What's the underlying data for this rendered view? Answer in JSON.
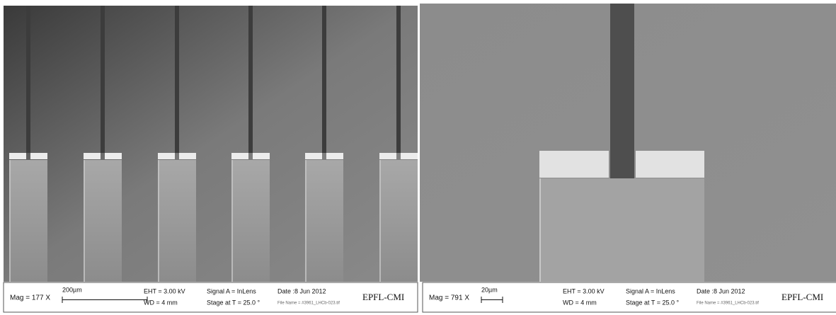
{
  "panels": [
    {
      "mag": "Mag =  177 X",
      "scale": "200µm",
      "eht": "EHT = 3.00 kV",
      "signal": "Signal A = InLens",
      "date": "Date :8 Jun 2012",
      "wd": "WD =   4 mm",
      "stage": "Stage at T =  25.0 °",
      "file": "File Name = #3961_LHCb-023.tif",
      "logo": "EPFL-CMI"
    },
    {
      "mag": "Mag =  791 X",
      "scale": "20µm",
      "eht": "EHT = 3.00 kV",
      "signal": "Signal A = InLens",
      "date": "Date :8 Jun 2012",
      "wd": "WD =   4 mm",
      "stage": "Stage at T =  25.0 °",
      "file": "File Name = #3961_LHCb-023.tif",
      "logo": "EPFL-CMI"
    }
  ]
}
